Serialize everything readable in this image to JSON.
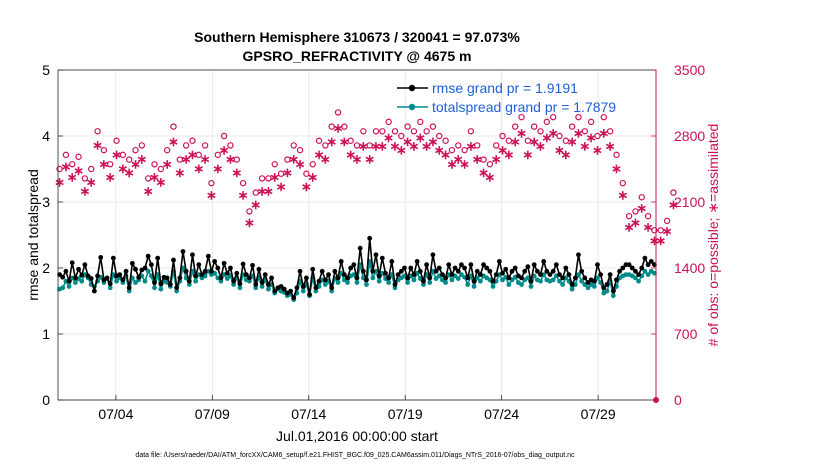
{
  "chart_data": {
    "type": "line",
    "title": [
      "Southern Hemisphere 310673 / 320041 = 97.073%",
      "GPSRO_REFRACTIVITY @ 4675 m"
    ],
    "xlabel": "Jul.01,2016 00:00:00 start",
    "ylabel": "rmse and totalspread",
    "y2label": "# of obs: o=possible; ∗=assimilated",
    "footer": "data file: /Users/raeder/DAI/ATM_forcXX/CAM6_setup/f.e21.FHIST_BGC.f09_025.CAM6assim.011/Diags_NTrS_2016-07/obs_diag_output.nc",
    "xlim": [
      1,
      32
    ],
    "ylim": [
      0,
      5
    ],
    "y2lim": [
      0,
      3500
    ],
    "xticks": [
      {
        "x": 4,
        "label": "07/04"
      },
      {
        "x": 9,
        "label": "07/09"
      },
      {
        "x": 14,
        "label": "07/14"
      },
      {
        "x": 19,
        "label": "07/19"
      },
      {
        "x": 24,
        "label": "07/24"
      },
      {
        "x": 29,
        "label": "07/29"
      }
    ],
    "yticks": [
      "0",
      "1",
      "2",
      "3",
      "4",
      "5"
    ],
    "y2ticks": [
      "0",
      "700",
      "1400",
      "2100",
      "2800",
      "3500"
    ],
    "grid": true,
    "colors": {
      "rmse": "#000000",
      "spread": "#008b8b",
      "obs": "#cc1155",
      "ylabel2": "#cc1155",
      "legend_text": "#1f5fd6"
    },
    "legend": [
      "rmse grand pr = 1.9191",
      "totalspread grand pr = 1.7879"
    ],
    "series": [
      {
        "name": "rmse",
        "values": [
          1.9,
          1.86,
          1.95,
          1.8,
          2.08,
          1.85,
          1.98,
          1.89,
          2.05,
          1.88,
          1.84,
          1.65,
          1.88,
          2.16,
          1.82,
          1.85,
          1.76,
          2.15,
          1.88,
          1.9,
          1.82,
          1.95,
          1.7,
          2.07,
          1.98,
          1.86,
          1.97,
          2.0,
          2.18,
          2.05,
          1.78,
          2.15,
          1.76,
          1.86,
          1.85,
          1.75,
          2.12,
          1.7,
          1.85,
          2.25,
          1.95,
          1.8,
          2.2,
          1.88,
          2.05,
          1.9,
          1.95,
          2.18,
          1.95,
          2.1,
          2.0,
          1.85,
          2.07,
          1.92,
          2.0,
          1.8,
          1.92,
          1.76,
          2.06,
          1.9,
          1.85,
          2.04,
          1.75,
          1.98,
          1.78,
          1.9,
          1.75,
          1.85,
          1.65,
          1.7,
          1.72,
          1.68,
          1.62,
          1.65,
          1.55,
          1.7,
          1.95,
          1.72,
          1.85,
          1.6,
          1.98,
          1.7,
          1.8,
          1.95,
          1.82,
          1.9,
          1.7,
          1.95,
          1.85,
          2.1,
          1.9,
          1.85,
          2.0,
          2.05,
          1.85,
          2.3,
          1.95,
          1.82,
          2.45,
          1.95,
          2.2,
          1.88,
          2.15,
          1.92,
          1.85,
          2.1,
          1.75,
          1.9,
          1.95,
          2.0,
          1.85,
          2.0,
          1.9,
          2.1,
          1.95,
          1.8,
          2.05,
          1.85,
          2.2,
          1.95,
          2.0,
          1.9,
          1.85,
          2.05,
          1.9,
          2.0,
          1.95,
          2.05,
          2.0,
          1.85,
          2.05,
          1.8,
          1.95,
          1.9,
          2.05,
          2.0,
          1.95,
          1.8,
          1.9,
          2.1,
          1.92,
          1.98,
          1.85,
          1.95,
          2.0,
          1.88,
          1.85,
          1.95,
          2.02,
          1.8,
          2.05,
          1.95,
          1.9,
          2.1,
          1.95,
          1.9,
          1.95,
          2.05,
          1.9,
          1.85,
          2.0,
          1.9,
          1.75,
          1.85,
          2.2,
          1.95,
          1.85,
          1.78,
          1.82,
          1.8,
          2.05,
          1.9,
          1.7,
          1.75,
          1.9,
          1.65,
          1.82,
          1.95,
          2.0,
          2.05,
          2.05,
          2.0,
          1.95,
          1.9,
          2.0,
          2.15,
          2.05,
          2.1,
          2.05
        ]
      },
      {
        "name": "totalspread",
        "values": [
          1.68,
          1.7,
          1.8,
          1.72,
          1.85,
          1.78,
          1.84,
          1.8,
          1.9,
          1.85,
          1.75,
          1.72,
          1.8,
          1.86,
          1.78,
          1.84,
          1.7,
          1.9,
          1.8,
          1.85,
          1.78,
          1.88,
          1.65,
          1.85,
          1.78,
          1.82,
          1.88,
          1.8,
          1.95,
          1.88,
          1.7,
          1.9,
          1.68,
          1.8,
          1.78,
          1.72,
          1.95,
          1.65,
          1.8,
          2.0,
          1.85,
          1.75,
          1.95,
          1.8,
          1.9,
          1.85,
          1.88,
          1.95,
          1.9,
          1.92,
          1.85,
          1.8,
          1.9,
          1.84,
          1.88,
          1.75,
          1.85,
          1.7,
          1.9,
          1.82,
          1.8,
          1.88,
          1.7,
          1.86,
          1.72,
          1.82,
          1.68,
          1.75,
          1.62,
          1.68,
          1.65,
          1.63,
          1.58,
          1.6,
          1.52,
          1.62,
          1.8,
          1.65,
          1.75,
          1.58,
          1.85,
          1.65,
          1.72,
          1.82,
          1.75,
          1.8,
          1.65,
          1.84,
          1.78,
          1.92,
          1.82,
          1.78,
          1.88,
          1.9,
          1.78,
          2.05,
          1.85,
          1.75,
          2.1,
          1.85,
          1.95,
          1.8,
          1.92,
          1.84,
          1.78,
          1.9,
          1.7,
          1.82,
          1.85,
          1.88,
          1.78,
          1.88,
          1.82,
          1.92,
          1.84,
          1.75,
          1.9,
          1.78,
          1.95,
          1.84,
          1.88,
          1.82,
          1.78,
          1.9,
          1.82,
          1.88,
          1.84,
          1.9,
          1.86,
          1.75,
          1.88,
          1.72,
          1.85,
          1.8,
          1.88,
          1.85,
          1.82,
          1.72,
          1.8,
          1.9,
          1.82,
          1.86,
          1.75,
          1.82,
          1.86,
          1.78,
          1.75,
          1.82,
          1.85,
          1.72,
          1.88,
          1.82,
          1.8,
          1.9,
          1.82,
          1.8,
          1.82,
          1.88,
          1.8,
          1.75,
          1.85,
          1.8,
          1.68,
          1.75,
          1.9,
          1.8,
          1.75,
          1.7,
          1.75,
          1.72,
          1.85,
          1.78,
          1.62,
          1.65,
          1.8,
          1.58,
          1.72,
          1.85,
          1.88,
          1.9,
          1.9,
          1.88,
          1.85,
          1.8,
          1.88,
          1.95,
          1.9,
          1.95,
          1.92
        ]
      },
      {
        "name": "obs_possible",
        "values": [
          2450,
          2550,
          2600,
          2550,
          2500,
          2650,
          2580,
          2400,
          2350,
          2300,
          2450,
          2650,
          2850,
          2780,
          2650,
          2400,
          2500,
          2800,
          2750,
          2650,
          2600,
          2700,
          2550,
          2450,
          2650,
          2600,
          2700,
          2680,
          2350,
          2450,
          2500,
          2700,
          2450,
          2550,
          2650,
          2700,
          2900,
          3050,
          2550,
          2800,
          2700,
          2600,
          2750,
          2950,
          2600,
          2850,
          2700,
          2400,
          2300,
          2050,
          2600,
          2550,
          2800,
          2650,
          2700,
          2600,
          2550,
          2400,
          2300,
          2050,
          2000,
          2150,
          2200,
          2250,
          2350,
          2400,
          2350,
          2450,
          2500,
          2350,
          2400,
          2450,
          2550,
          2600,
          2700,
          2800,
          2650,
          2550,
          2400,
          2350,
          2500,
          2650,
          2750,
          2800,
          2700,
          2850,
          2900,
          3100,
          3050,
          3000,
          2900,
          2850,
          2750,
          2800,
          2700,
          2750,
          2850,
          2800,
          2700,
          2800,
          2850,
          2900,
          2850,
          2800,
          2950,
          2900,
          2850,
          2750,
          2800,
          2850,
          2900,
          2800,
          2850,
          2900,
          2950,
          2800,
          2850,
          2750,
          2900,
          2850,
          2800,
          2700,
          2750,
          2800,
          2650,
          2600,
          2700,
          2750,
          2650,
          2800,
          2850,
          2750,
          2700,
          2650,
          2550,
          2450,
          2500,
          2600,
          2700,
          2750,
          2800,
          2700,
          2750,
          2850,
          2900,
          2950,
          3000,
          2850,
          2750,
          2800,
          2900,
          2950,
          2850,
          2900,
          2950,
          3050,
          3000,
          2900,
          2800,
          2700,
          2750,
          2850,
          2900,
          2950,
          3000,
          2900,
          2850,
          3000,
          2950,
          2900,
          2800,
          2900,
          3000,
          2950,
          2850,
          2700,
          2600,
          2400,
          2300,
          2100,
          1950,
          1900,
          2000,
          2200,
          2150,
          2050,
          1950,
          1850,
          1800,
          1750,
          1800,
          1850,
          1900,
          2050,
          2200,
          2100
        ]
      },
      {
        "name": "obs_assimilated",
        "values": [
          2330,
          2440,
          2490,
          2430,
          2380,
          2520,
          2450,
          2280,
          2230,
          2180,
          2330,
          2520,
          2720,
          2650,
          2520,
          2280,
          2380,
          2670,
          2620,
          2520,
          2470,
          2570,
          2430,
          2330,
          2520,
          2470,
          2570,
          2550,
          2230,
          2330,
          2380,
          2570,
          2330,
          2430,
          2520,
          2570,
          2760,
          2900,
          2430,
          2670,
          2570,
          2470,
          2620,
          2800,
          2470,
          2710,
          2570,
          2280,
          2190,
          1950,
          2470,
          2430,
          2670,
          2520,
          2570,
          2470,
          2430,
          2280,
          2190,
          1950,
          1900,
          2050,
          2090,
          2140,
          2230,
          2280,
          2230,
          2330,
          2380,
          2230,
          2280,
          2330,
          2430,
          2470,
          2570,
          2670,
          2520,
          2430,
          2280,
          2230,
          2380,
          2520,
          2620,
          2670,
          2570,
          2710,
          2760,
          2950,
          2900,
          2850,
          2760,
          2710,
          2620,
          2670,
          2570,
          2620,
          2710,
          2670,
          2570,
          2670,
          2710,
          2760,
          2710,
          2670,
          2800,
          2760,
          2710,
          2620,
          2670,
          2710,
          2760,
          2670,
          2710,
          2760,
          2800,
          2670,
          2710,
          2620,
          2760,
          2710,
          2670,
          2570,
          2620,
          2670,
          2520,
          2470,
          2570,
          2620,
          2520,
          2670,
          2710,
          2620,
          2570,
          2520,
          2430,
          2330,
          2380,
          2470,
          2570,
          2620,
          2670,
          2570,
          2620,
          2710,
          2760,
          2800,
          2850,
          2710,
          2620,
          2670,
          2760,
          2800,
          2710,
          2760,
          2800,
          2900,
          2850,
          2760,
          2670,
          2570,
          2620,
          2710,
          2760,
          2800,
          2850,
          2760,
          2710,
          2850,
          2800,
          2760,
          2670,
          2760,
          2850,
          2800,
          2710,
          2570,
          2470,
          2280,
          2190,
          2000,
          1850,
          1810,
          1900,
          2090,
          2050,
          1950,
          1850,
          1760,
          1710,
          1670,
          1710,
          1760,
          1810,
          1950,
          2090,
          2000
        ]
      }
    ]
  }
}
